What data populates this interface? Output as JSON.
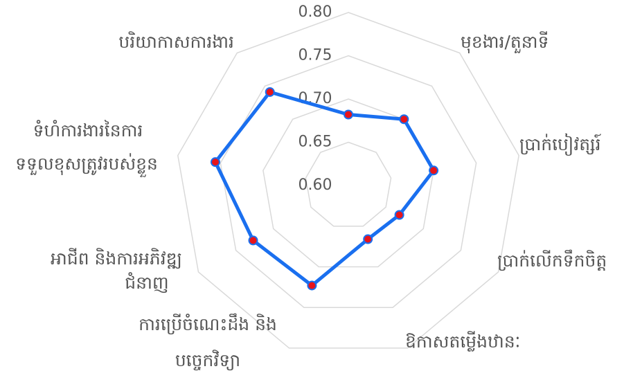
{
  "chart_data": {
    "type": "radar",
    "categories": [
      null,
      [
        "មុខងារ/តួនាទី"
      ],
      [
        "ប្រាក់បៀវត្សរ៍"
      ],
      [
        "ប្រាក់លើកទឹកចិត្ត"
      ],
      [
        "ឱកាសតម្លើងឋានៈ"
      ],
      [
        "ការប្រើចំណេះដឹង និង",
        "បច្ចេកវិទ្យា"
      ],
      [
        "អាជីព និងការអភិវឌ្ឍ",
        "ជំនាញ"
      ],
      [
        "ទំហំការងារនៃការ",
        "ទទួលខុសត្រូវរបស់ខ្លួន"
      ],
      [
        "បរិយាកាសការងារ"
      ]
    ],
    "series": [
      {
        "color": "#1a6fef",
        "marker_color": "#e8141b",
        "values": [
          0.682,
          0.7,
          0.7,
          0.668,
          0.666,
          0.723,
          0.727,
          0.756,
          0.741
        ]
      }
    ],
    "rlim": [
      0.6,
      0.8
    ],
    "rticks": [
      {
        "value": 0.6,
        "label": "0.60"
      },
      {
        "value": 0.65,
        "label": "0.65"
      },
      {
        "value": 0.7,
        "label": "0.70"
      },
      {
        "value": 0.75,
        "label": "0.75"
      },
      {
        "value": 0.8,
        "label": "0.80"
      }
    ],
    "grid": true
  }
}
